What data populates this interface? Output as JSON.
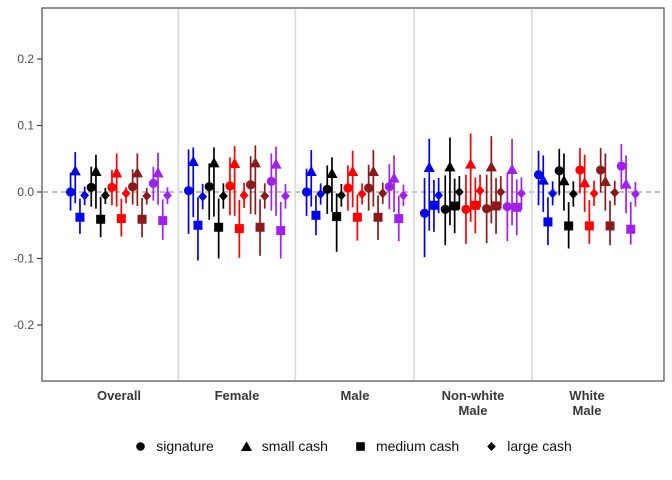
{
  "chart_data": {
    "type": "scatter",
    "subtype": "faceted-pointrange-forest-plot",
    "title": "",
    "xlabel": "",
    "ylabel": "",
    "ylim": [
      -0.27,
      0.275
    ],
    "ytick_values": [
      0.2,
      0.1,
      0.0,
      -0.1,
      -0.2
    ],
    "ytick_labels": [
      "0.2",
      "0.1",
      "0.0",
      "-0.1",
      "-0.2"
    ],
    "reference_line": 0.0,
    "reference_line_style": "dashed",
    "grid": "off",
    "legend_position": "bottom",
    "facets": [
      {
        "id": "Overall",
        "lines": [
          "Overall"
        ]
      },
      {
        "id": "Female",
        "lines": [
          "Female"
        ]
      },
      {
        "id": "Male",
        "lines": [
          "Male"
        ]
      },
      {
        "id": "Non-white Male",
        "lines": [
          "Non-white",
          "Male"
        ]
      },
      {
        "id": "White Male",
        "lines": [
          "White",
          "Male"
        ]
      }
    ],
    "treatments": [
      {
        "label": "signature",
        "marker": "circle"
      },
      {
        "label": "small cash",
        "marker": "triangle"
      },
      {
        "label": "medium cash",
        "marker": "square"
      },
      {
        "label": "large cash",
        "marker": "diamond"
      }
    ],
    "color_groups": [
      {
        "name": "blue",
        "color": "#0000EE"
      },
      {
        "name": "black",
        "color": "#000000"
      },
      {
        "name": "red",
        "color": "#FF0000"
      },
      {
        "name": "dark-red",
        "color": "#8B1A1A"
      },
      {
        "name": "purple",
        "color": "#A020F0"
      }
    ],
    "value_format": "[estimate, ci_low, ci_high]",
    "effects": {
      "Overall": {
        "blue": {
          "signature": [
            0.0,
            -0.028,
            0.029
          ],
          "small cash": [
            0.032,
            -0.017,
            0.06
          ],
          "medium cash": [
            -0.038,
            -0.063,
            -0.01
          ],
          "large cash": [
            -0.005,
            -0.02,
            0.008
          ]
        },
        "black": {
          "signature": [
            0.007,
            -0.022,
            0.038
          ],
          "small cash": [
            0.031,
            -0.025,
            0.056
          ],
          "medium cash": [
            -0.041,
            -0.068,
            -0.007
          ],
          "large cash": [
            -0.005,
            -0.018,
            0.006
          ]
        },
        "red": {
          "signature": [
            0.007,
            -0.02,
            0.033
          ],
          "small cash": [
            0.029,
            -0.022,
            0.058
          ],
          "medium cash": [
            -0.04,
            -0.067,
            -0.01
          ],
          "large cash": [
            -0.002,
            -0.017,
            0.007
          ]
        },
        "dark-red": {
          "signature": [
            0.008,
            -0.019,
            0.034
          ],
          "small cash": [
            0.029,
            -0.021,
            0.058
          ],
          "medium cash": [
            -0.041,
            -0.068,
            -0.009
          ],
          "large cash": [
            -0.006,
            -0.019,
            0.006
          ]
        },
        "purple": {
          "signature": [
            0.013,
            -0.013,
            0.038
          ],
          "small cash": [
            0.029,
            -0.019,
            0.059
          ],
          "medium cash": [
            -0.043,
            -0.072,
            -0.011
          ],
          "large cash": [
            -0.005,
            -0.018,
            0.007
          ]
        }
      },
      "Female": {
        "blue": {
          "signature": [
            0.002,
            -0.063,
            0.064
          ],
          "small cash": [
            0.046,
            -0.038,
            0.067
          ],
          "medium cash": [
            -0.05,
            -0.103,
            -0.008
          ],
          "large cash": [
            -0.007,
            -0.026,
            0.012
          ]
        },
        "black": {
          "signature": [
            0.008,
            -0.042,
            0.043
          ],
          "small cash": [
            0.044,
            -0.037,
            0.067
          ],
          "medium cash": [
            -0.053,
            -0.1,
            -0.01
          ],
          "large cash": [
            -0.006,
            -0.025,
            0.013
          ]
        },
        "red": {
          "signature": [
            0.009,
            -0.035,
            0.052
          ],
          "small cash": [
            0.043,
            -0.036,
            0.069
          ],
          "medium cash": [
            -0.055,
            -0.099,
            -0.012
          ],
          "large cash": [
            -0.005,
            -0.024,
            0.014
          ]
        },
        "dark-red": {
          "signature": [
            0.011,
            -0.033,
            0.054
          ],
          "small cash": [
            0.044,
            -0.034,
            0.07
          ],
          "medium cash": [
            -0.053,
            -0.096,
            -0.011
          ],
          "large cash": [
            -0.006,
            -0.025,
            0.013
          ]
        },
        "purple": {
          "signature": [
            0.016,
            -0.028,
            0.058
          ],
          "small cash": [
            0.042,
            -0.036,
            0.068
          ],
          "medium cash": [
            -0.058,
            -0.1,
            -0.015
          ],
          "large cash": [
            -0.006,
            -0.025,
            0.012
          ]
        }
      },
      "Male": {
        "blue": {
          "signature": [
            0.0,
            -0.036,
            0.035
          ],
          "small cash": [
            0.031,
            -0.022,
            0.063
          ],
          "medium cash": [
            -0.035,
            -0.065,
            -0.005
          ],
          "large cash": [
            -0.003,
            -0.019,
            0.013
          ]
        },
        "black": {
          "signature": [
            0.004,
            -0.033,
            0.04
          ],
          "small cash": [
            0.028,
            -0.03,
            0.052
          ],
          "medium cash": [
            -0.037,
            -0.09,
            -0.002
          ],
          "large cash": [
            -0.005,
            -0.022,
            0.012
          ]
        },
        "red": {
          "signature": [
            0.006,
            -0.028,
            0.04
          ],
          "small cash": [
            0.031,
            -0.023,
            0.062
          ],
          "medium cash": [
            -0.038,
            -0.073,
            -0.004
          ],
          "large cash": [
            -0.003,
            -0.019,
            0.013
          ]
        },
        "dark-red": {
          "signature": [
            0.006,
            -0.028,
            0.041
          ],
          "small cash": [
            0.031,
            -0.022,
            0.063
          ],
          "medium cash": [
            -0.038,
            -0.072,
            -0.005
          ],
          "large cash": [
            -0.002,
            -0.018,
            0.014
          ]
        },
        "purple": {
          "signature": [
            0.008,
            -0.026,
            0.042
          ],
          "small cash": [
            0.021,
            -0.03,
            0.055
          ],
          "medium cash": [
            -0.04,
            -0.074,
            -0.006
          ],
          "large cash": [
            -0.005,
            -0.021,
            0.011
          ]
        }
      },
      "Non-white Male": {
        "blue": {
          "signature": [
            -0.032,
            -0.098,
            0.021
          ],
          "small cash": [
            0.037,
            -0.058,
            0.08
          ],
          "medium cash": [
            -0.02,
            -0.06,
            0.018
          ],
          "large cash": [
            -0.005,
            -0.032,
            0.021
          ]
        },
        "black": {
          "signature": [
            -0.026,
            -0.08,
            0.025
          ],
          "small cash": [
            0.038,
            -0.05,
            0.082
          ],
          "medium cash": [
            -0.021,
            -0.062,
            0.02
          ],
          "large cash": [
            0.0,
            -0.026,
            0.024
          ]
        },
        "red": {
          "signature": [
            -0.026,
            -0.078,
            0.026
          ],
          "small cash": [
            0.042,
            -0.045,
            0.088
          ],
          "medium cash": [
            -0.02,
            -0.062,
            0.022
          ],
          "large cash": [
            0.002,
            -0.023,
            0.026
          ]
        },
        "dark-red": {
          "signature": [
            -0.025,
            -0.077,
            0.026
          ],
          "small cash": [
            0.038,
            -0.047,
            0.084
          ],
          "medium cash": [
            -0.021,
            -0.063,
            0.021
          ],
          "large cash": [
            0.0,
            -0.025,
            0.024
          ]
        },
        "purple": {
          "signature": [
            -0.022,
            -0.074,
            0.029
          ],
          "small cash": [
            0.034,
            -0.05,
            0.08
          ],
          "medium cash": [
            -0.023,
            -0.065,
            0.019
          ],
          "large cash": [
            -0.002,
            -0.027,
            0.022
          ]
        }
      },
      "White Male": {
        "blue": {
          "signature": [
            0.026,
            -0.02,
            0.062
          ],
          "small cash": [
            0.018,
            -0.03,
            0.055
          ],
          "medium cash": [
            -0.045,
            -0.08,
            -0.008
          ],
          "large cash": [
            -0.002,
            -0.02,
            0.016
          ]
        },
        "black": {
          "signature": [
            0.032,
            -0.005,
            0.065
          ],
          "small cash": [
            0.017,
            -0.028,
            0.058
          ],
          "medium cash": [
            -0.051,
            -0.085,
            -0.015
          ],
          "large cash": [
            -0.003,
            -0.022,
            0.016
          ]
        },
        "red": {
          "signature": [
            0.033,
            -0.002,
            0.066
          ],
          "small cash": [
            0.014,
            -0.03,
            0.056
          ],
          "medium cash": [
            -0.051,
            -0.078,
            -0.012
          ],
          "large cash": [
            -0.002,
            -0.021,
            0.017
          ]
        },
        "dark-red": {
          "signature": [
            0.033,
            -0.001,
            0.066
          ],
          "small cash": [
            0.016,
            -0.028,
            0.058
          ],
          "medium cash": [
            -0.051,
            -0.08,
            -0.013
          ],
          "large cash": [
            -0.001,
            -0.02,
            0.017
          ]
        },
        "purple": {
          "signature": [
            0.039,
            0.004,
            0.072
          ],
          "small cash": [
            0.012,
            -0.032,
            0.055
          ],
          "medium cash": [
            -0.056,
            -0.079,
            -0.015
          ],
          "large cash": [
            -0.003,
            -0.022,
            0.015
          ]
        }
      }
    },
    "style_colors": {
      "panel_border": "#595959",
      "facet_separator": "#DBDBDB",
      "reference_line": "#9A9A9A",
      "tick_label": "#4D4D4D",
      "facet_label": "#383838",
      "legend_text": "#111111",
      "legend_marker": "#000000"
    }
  }
}
